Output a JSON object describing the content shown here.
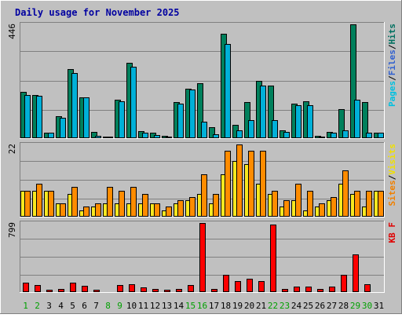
{
  "chart_data": {
    "type": "bar",
    "title": "Daily usage for November 2025",
    "categories": [
      "1",
      "2",
      "3",
      "4",
      "5",
      "6",
      "7",
      "8",
      "9",
      "10",
      "11",
      "12",
      "13",
      "14",
      "15",
      "16",
      "17",
      "18",
      "19",
      "20",
      "21",
      "22",
      "23",
      "24",
      "25",
      "26",
      "27",
      "28",
      "29",
      "30",
      "31"
    ],
    "weekend_days": [
      "1",
      "2",
      "8",
      "9",
      "15",
      "16",
      "22",
      "23",
      "29",
      "30"
    ],
    "panels": [
      {
        "max_label": "446",
        "ylim": [
          0,
          446
        ],
        "axis_legend": [
          {
            "text": "Pages",
            "color": "#00c0e0"
          },
          {
            "text": "/",
            "color": "#000000"
          },
          {
            "text": "Files",
            "color": "#3060d0"
          },
          {
            "text": "/",
            "color": "#000000"
          },
          {
            "text": "Hits",
            "color": "#007060"
          }
        ],
        "series": [
          {
            "name": "Hits",
            "color": "#00805c",
            "values": [
              180,
              170,
              22,
              85,
              270,
              160,
              25,
              5,
              150,
              295,
              28,
              20,
              8,
              140,
              195,
              215,
              42,
              410,
              52,
              140,
              225,
              205,
              30,
              135,
              145,
              10,
              24,
              115,
              445,
              140,
              22
            ]
          },
          {
            "name": "Files",
            "color": "#00b0d8",
            "values": [
              170,
              165,
              20,
              80,
              255,
              160,
              10,
              5,
              145,
              280,
              20,
              12,
              5,
              135,
              190,
              65,
              15,
              370,
              30,
              70,
              205,
              70,
              25,
              130,
              130,
              5,
              20,
              30,
              150,
              20,
              22
            ]
          }
        ]
      },
      {
        "max_label": "22",
        "ylim": [
          0,
          22
        ],
        "axis_legend": [
          {
            "text": "Sites",
            "color": "#f08000"
          },
          {
            "text": "/",
            "color": "#000000"
          },
          {
            "text": "Visits",
            "color": "#f0e000"
          }
        ],
        "series": [
          {
            "name": "Visits",
            "color": "#f8e820",
            "values": [
              8,
              8,
              8,
              4,
              7,
              2,
              3,
              4,
              4,
              4,
              4,
              4,
              2,
              4,
              5,
              7,
              4,
              13,
              17,
              16,
              10,
              7,
              3,
              5,
              2,
              3,
              5,
              10,
              7,
              3,
              8
            ]
          },
          {
            "name": "Sites",
            "color": "#ff8c00",
            "values": [
              8,
              10,
              8,
              4,
              9,
              3,
              4,
              9,
              8,
              9,
              7,
              4,
              3,
              5,
              6,
              13,
              7,
              20,
              22,
              20,
              20,
              8,
              5,
              10,
              8,
              4,
              6,
              14,
              8,
              8,
              8
            ]
          }
        ]
      },
      {
        "max_label": "799",
        "ylim": [
          0,
          799
        ],
        "axis_legend": [
          {
            "text": "KB F",
            "color": "#e00000"
          }
        ],
        "series": [
          {
            "name": "KB F",
            "color": "#ff0000",
            "values": [
              110,
              85,
              30,
              40,
              110,
              75,
              25,
              10,
              85,
              90,
              55,
              40,
              25,
              40,
              85,
              799,
              35,
              200,
              130,
              155,
              130,
              785,
              40,
              65,
              65,
              40,
              60,
              200,
              440,
              90,
              0
            ]
          }
        ]
      }
    ]
  }
}
